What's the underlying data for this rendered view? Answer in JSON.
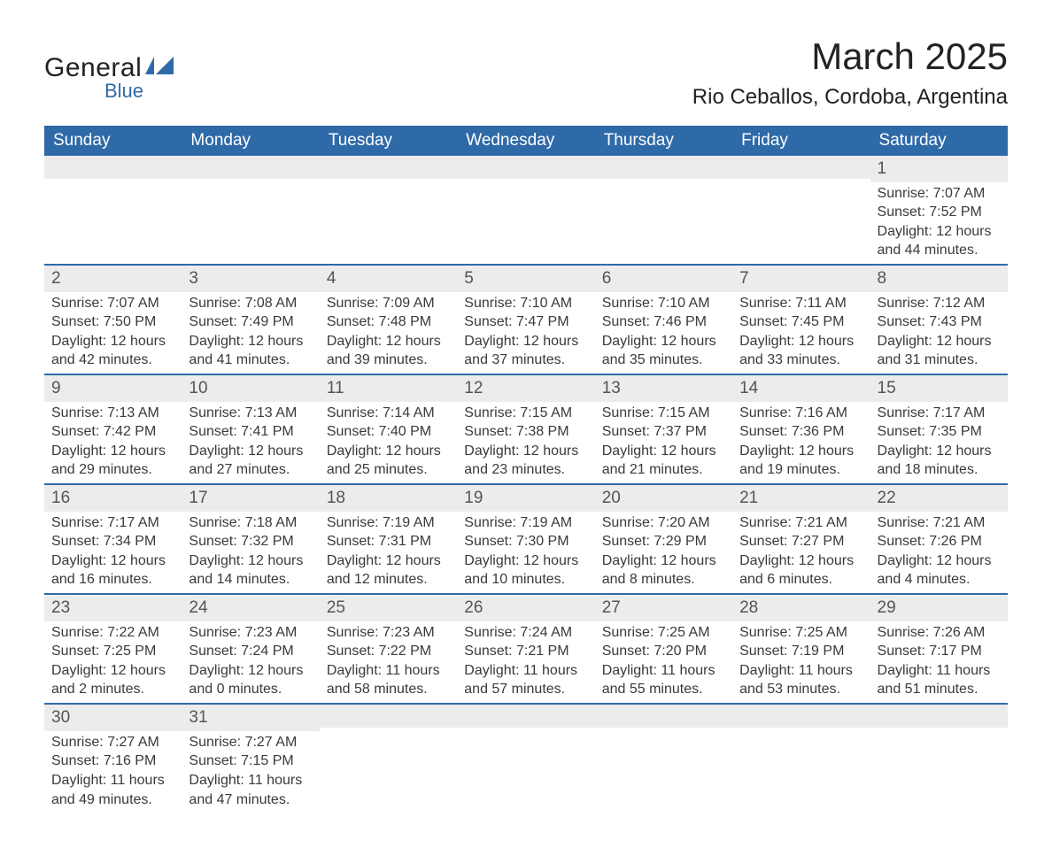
{
  "logo": {
    "word1": "General",
    "word2": "Blue"
  },
  "title": "March 2025",
  "location": "Rio Ceballos, Cordoba, Argentina",
  "colors": {
    "header_bg": "#2f6aa8",
    "header_text": "#ffffff",
    "daynum_bg": "#ececec",
    "row_border": "#2f6aa8",
    "text": "#3a3a3a",
    "page_bg": "#ffffff",
    "logo_blue": "#2f6aa8"
  },
  "typography": {
    "title_fontsize": 42,
    "location_fontsize": 24,
    "header_fontsize": 19,
    "daynum_fontsize": 19,
    "body_fontsize": 16,
    "font_family": "Arial"
  },
  "weekdays": [
    "Sunday",
    "Monday",
    "Tuesday",
    "Wednesday",
    "Thursday",
    "Friday",
    "Saturday"
  ],
  "weeks": [
    [
      {
        "day": "",
        "sunrise": "",
        "sunset": "",
        "daylight1": "",
        "daylight2": ""
      },
      {
        "day": "",
        "sunrise": "",
        "sunset": "",
        "daylight1": "",
        "daylight2": ""
      },
      {
        "day": "",
        "sunrise": "",
        "sunset": "",
        "daylight1": "",
        "daylight2": ""
      },
      {
        "day": "",
        "sunrise": "",
        "sunset": "",
        "daylight1": "",
        "daylight2": ""
      },
      {
        "day": "",
        "sunrise": "",
        "sunset": "",
        "daylight1": "",
        "daylight2": ""
      },
      {
        "day": "",
        "sunrise": "",
        "sunset": "",
        "daylight1": "",
        "daylight2": ""
      },
      {
        "day": "1",
        "sunrise": "Sunrise: 7:07 AM",
        "sunset": "Sunset: 7:52 PM",
        "daylight1": "Daylight: 12 hours",
        "daylight2": "and 44 minutes."
      }
    ],
    [
      {
        "day": "2",
        "sunrise": "Sunrise: 7:07 AM",
        "sunset": "Sunset: 7:50 PM",
        "daylight1": "Daylight: 12 hours",
        "daylight2": "and 42 minutes."
      },
      {
        "day": "3",
        "sunrise": "Sunrise: 7:08 AM",
        "sunset": "Sunset: 7:49 PM",
        "daylight1": "Daylight: 12 hours",
        "daylight2": "and 41 minutes."
      },
      {
        "day": "4",
        "sunrise": "Sunrise: 7:09 AM",
        "sunset": "Sunset: 7:48 PM",
        "daylight1": "Daylight: 12 hours",
        "daylight2": "and 39 minutes."
      },
      {
        "day": "5",
        "sunrise": "Sunrise: 7:10 AM",
        "sunset": "Sunset: 7:47 PM",
        "daylight1": "Daylight: 12 hours",
        "daylight2": "and 37 minutes."
      },
      {
        "day": "6",
        "sunrise": "Sunrise: 7:10 AM",
        "sunset": "Sunset: 7:46 PM",
        "daylight1": "Daylight: 12 hours",
        "daylight2": "and 35 minutes."
      },
      {
        "day": "7",
        "sunrise": "Sunrise: 7:11 AM",
        "sunset": "Sunset: 7:45 PM",
        "daylight1": "Daylight: 12 hours",
        "daylight2": "and 33 minutes."
      },
      {
        "day": "8",
        "sunrise": "Sunrise: 7:12 AM",
        "sunset": "Sunset: 7:43 PM",
        "daylight1": "Daylight: 12 hours",
        "daylight2": "and 31 minutes."
      }
    ],
    [
      {
        "day": "9",
        "sunrise": "Sunrise: 7:13 AM",
        "sunset": "Sunset: 7:42 PM",
        "daylight1": "Daylight: 12 hours",
        "daylight2": "and 29 minutes."
      },
      {
        "day": "10",
        "sunrise": "Sunrise: 7:13 AM",
        "sunset": "Sunset: 7:41 PM",
        "daylight1": "Daylight: 12 hours",
        "daylight2": "and 27 minutes."
      },
      {
        "day": "11",
        "sunrise": "Sunrise: 7:14 AM",
        "sunset": "Sunset: 7:40 PM",
        "daylight1": "Daylight: 12 hours",
        "daylight2": "and 25 minutes."
      },
      {
        "day": "12",
        "sunrise": "Sunrise: 7:15 AM",
        "sunset": "Sunset: 7:38 PM",
        "daylight1": "Daylight: 12 hours",
        "daylight2": "and 23 minutes."
      },
      {
        "day": "13",
        "sunrise": "Sunrise: 7:15 AM",
        "sunset": "Sunset: 7:37 PM",
        "daylight1": "Daylight: 12 hours",
        "daylight2": "and 21 minutes."
      },
      {
        "day": "14",
        "sunrise": "Sunrise: 7:16 AM",
        "sunset": "Sunset: 7:36 PM",
        "daylight1": "Daylight: 12 hours",
        "daylight2": "and 19 minutes."
      },
      {
        "day": "15",
        "sunrise": "Sunrise: 7:17 AM",
        "sunset": "Sunset: 7:35 PM",
        "daylight1": "Daylight: 12 hours",
        "daylight2": "and 18 minutes."
      }
    ],
    [
      {
        "day": "16",
        "sunrise": "Sunrise: 7:17 AM",
        "sunset": "Sunset: 7:34 PM",
        "daylight1": "Daylight: 12 hours",
        "daylight2": "and 16 minutes."
      },
      {
        "day": "17",
        "sunrise": "Sunrise: 7:18 AM",
        "sunset": "Sunset: 7:32 PM",
        "daylight1": "Daylight: 12 hours",
        "daylight2": "and 14 minutes."
      },
      {
        "day": "18",
        "sunrise": "Sunrise: 7:19 AM",
        "sunset": "Sunset: 7:31 PM",
        "daylight1": "Daylight: 12 hours",
        "daylight2": "and 12 minutes."
      },
      {
        "day": "19",
        "sunrise": "Sunrise: 7:19 AM",
        "sunset": "Sunset: 7:30 PM",
        "daylight1": "Daylight: 12 hours",
        "daylight2": "and 10 minutes."
      },
      {
        "day": "20",
        "sunrise": "Sunrise: 7:20 AM",
        "sunset": "Sunset: 7:29 PM",
        "daylight1": "Daylight: 12 hours",
        "daylight2": "and 8 minutes."
      },
      {
        "day": "21",
        "sunrise": "Sunrise: 7:21 AM",
        "sunset": "Sunset: 7:27 PM",
        "daylight1": "Daylight: 12 hours",
        "daylight2": "and 6 minutes."
      },
      {
        "day": "22",
        "sunrise": "Sunrise: 7:21 AM",
        "sunset": "Sunset: 7:26 PM",
        "daylight1": "Daylight: 12 hours",
        "daylight2": "and 4 minutes."
      }
    ],
    [
      {
        "day": "23",
        "sunrise": "Sunrise: 7:22 AM",
        "sunset": "Sunset: 7:25 PM",
        "daylight1": "Daylight: 12 hours",
        "daylight2": "and 2 minutes."
      },
      {
        "day": "24",
        "sunrise": "Sunrise: 7:23 AM",
        "sunset": "Sunset: 7:24 PM",
        "daylight1": "Daylight: 12 hours",
        "daylight2": "and 0 minutes."
      },
      {
        "day": "25",
        "sunrise": "Sunrise: 7:23 AM",
        "sunset": "Sunset: 7:22 PM",
        "daylight1": "Daylight: 11 hours",
        "daylight2": "and 58 minutes."
      },
      {
        "day": "26",
        "sunrise": "Sunrise: 7:24 AM",
        "sunset": "Sunset: 7:21 PM",
        "daylight1": "Daylight: 11 hours",
        "daylight2": "and 57 minutes."
      },
      {
        "day": "27",
        "sunrise": "Sunrise: 7:25 AM",
        "sunset": "Sunset: 7:20 PM",
        "daylight1": "Daylight: 11 hours",
        "daylight2": "and 55 minutes."
      },
      {
        "day": "28",
        "sunrise": "Sunrise: 7:25 AM",
        "sunset": "Sunset: 7:19 PM",
        "daylight1": "Daylight: 11 hours",
        "daylight2": "and 53 minutes."
      },
      {
        "day": "29",
        "sunrise": "Sunrise: 7:26 AM",
        "sunset": "Sunset: 7:17 PM",
        "daylight1": "Daylight: 11 hours",
        "daylight2": "and 51 minutes."
      }
    ],
    [
      {
        "day": "30",
        "sunrise": "Sunrise: 7:27 AM",
        "sunset": "Sunset: 7:16 PM",
        "daylight1": "Daylight: 11 hours",
        "daylight2": "and 49 minutes."
      },
      {
        "day": "31",
        "sunrise": "Sunrise: 7:27 AM",
        "sunset": "Sunset: 7:15 PM",
        "daylight1": "Daylight: 11 hours",
        "daylight2": "and 47 minutes."
      },
      {
        "day": "",
        "sunrise": "",
        "sunset": "",
        "daylight1": "",
        "daylight2": ""
      },
      {
        "day": "",
        "sunrise": "",
        "sunset": "",
        "daylight1": "",
        "daylight2": ""
      },
      {
        "day": "",
        "sunrise": "",
        "sunset": "",
        "daylight1": "",
        "daylight2": ""
      },
      {
        "day": "",
        "sunrise": "",
        "sunset": "",
        "daylight1": "",
        "daylight2": ""
      },
      {
        "day": "",
        "sunrise": "",
        "sunset": "",
        "daylight1": "",
        "daylight2": ""
      }
    ]
  ]
}
